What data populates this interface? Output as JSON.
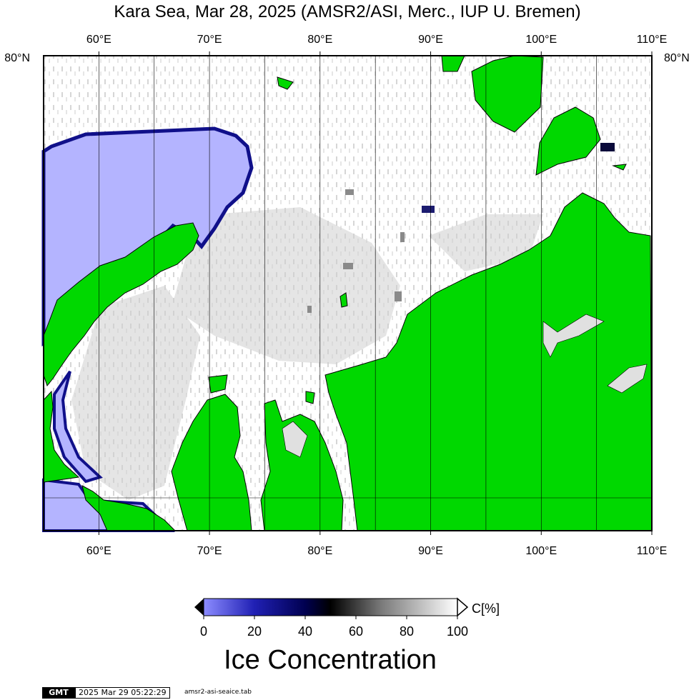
{
  "title": "Kara Sea, Mar 28, 2025 (AMSR2/ASI, Merc., IUP U. Bremen)",
  "map": {
    "region": "Kara Sea",
    "projection": "Mercator",
    "lon_range": [
      55,
      110
    ],
    "lat_labels": [
      "80°N"
    ],
    "lon_tick_labels": [
      "60°E",
      "70°E",
      "80°E",
      "90°E",
      "100°E",
      "110°E"
    ],
    "lat_tick_label": "80°N",
    "colors": {
      "land": "#00d800",
      "open_water": "#b4b4ff",
      "ice_high": "#ffffff",
      "frame": "#000000"
    }
  },
  "colorbar": {
    "unit_label": "C[%]",
    "ticks": [
      "0",
      "20",
      "40",
      "60",
      "80",
      "100"
    ],
    "title": "Ice Concentration",
    "stops": [
      {
        "value": 0,
        "color": "#8c8cff"
      },
      {
        "value": 20,
        "color": "#2020b4"
      },
      {
        "value": 40,
        "color": "#000050"
      },
      {
        "value": 50,
        "color": "#000000"
      },
      {
        "value": 70,
        "color": "#7a7a7a"
      },
      {
        "value": 100,
        "color": "#ffffff"
      }
    ]
  },
  "footer": {
    "logo": "GMT",
    "timestamp": "2025 Mar 29 05:22:29",
    "filename": "amsr2-asi-seaice.tab"
  }
}
